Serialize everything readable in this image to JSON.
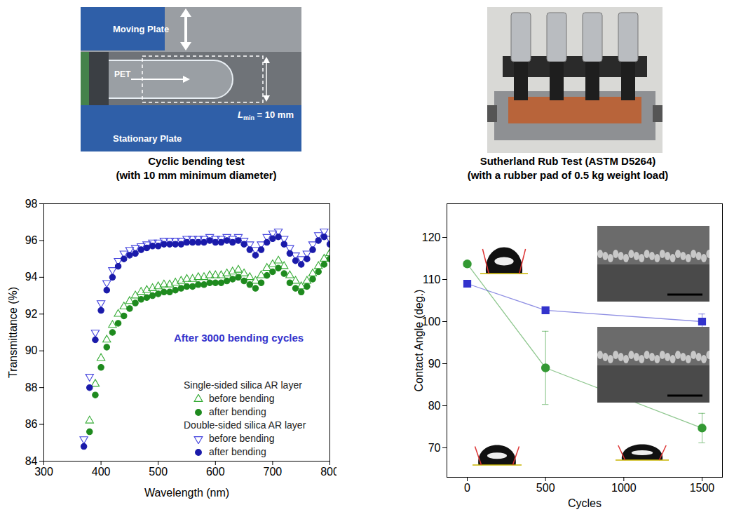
{
  "photos": [
    {
      "labels": [
        "Moving Plate",
        "PET",
        "Stationary Plate"
      ],
      "dimension": {
        "symbol": "L",
        "subscript": "min",
        "text": " = 10 mm"
      },
      "caption": [
        "Cyclic bending test",
        "(with 10 mm minimum diameter)"
      ]
    },
    {
      "caption": [
        "Sutherland Rub Test (ASTM D5264)",
        "(with a rubber pad of 0.5 kg weight load)"
      ]
    }
  ],
  "chart_data": [
    {
      "type": "scatter",
      "xlabel": "Wavelength (nm)",
      "ylabel": "Transmittance (%)",
      "xlim": [
        300,
        800
      ],
      "xticks": [
        300,
        400,
        500,
        600,
        700,
        800
      ],
      "ylim": [
        84,
        98
      ],
      "yticks": [
        84,
        86,
        88,
        90,
        92,
        94,
        96,
        98
      ],
      "legend": "lower right",
      "annotations": [
        {
          "text": "After 3000 bending cycles",
          "color": "#3333cc"
        }
      ],
      "x": [
        370,
        380,
        390,
        400,
        410,
        420,
        430,
        440,
        450,
        460,
        470,
        480,
        490,
        500,
        510,
        520,
        530,
        540,
        550,
        560,
        570,
        580,
        590,
        600,
        610,
        620,
        630,
        640,
        650,
        660,
        670,
        680,
        690,
        700,
        710,
        720,
        730,
        740,
        750,
        760,
        770,
        780,
        790,
        800
      ],
      "series": [
        {
          "group": "Single-sided silica AR layer",
          "name": "before bending",
          "color": "#33aa33",
          "marker": "triangle-open",
          "values": [
            null,
            86.2,
            88.2,
            89.6,
            90.6,
            91.4,
            92.0,
            92.4,
            92.7,
            93.0,
            93.2,
            93.3,
            93.4,
            93.5,
            93.6,
            93.6,
            93.7,
            93.8,
            93.9,
            93.9,
            94.0,
            94.0,
            94.1,
            94.1,
            94.1,
            94.2,
            94.3,
            94.4,
            94.2,
            94.0,
            93.8,
            94.1,
            94.5,
            94.7,
            94.9,
            94.6,
            94.1,
            93.8,
            93.5,
            93.8,
            94.2,
            94.6,
            95.0,
            95.3
          ]
        },
        {
          "group": "Single-sided silica AR layer",
          "name": "after bending",
          "color": "#1e8a1e",
          "marker": "circle",
          "values": [
            null,
            85.6,
            87.6,
            89.1,
            90.2,
            91.0,
            91.5,
            91.9,
            92.3,
            92.6,
            92.8,
            92.9,
            93.0,
            93.1,
            93.2,
            93.2,
            93.3,
            93.4,
            93.5,
            93.5,
            93.6,
            93.6,
            93.7,
            93.7,
            93.7,
            93.8,
            93.9,
            94.0,
            93.8,
            93.6,
            93.4,
            93.7,
            94.1,
            94.3,
            94.5,
            94.2,
            93.7,
            93.4,
            93.2,
            93.5,
            93.9,
            94.3,
            94.7,
            95.0
          ]
        },
        {
          "group": "Double-sided silica AR layer",
          "name": "before bending",
          "color": "#4444dd",
          "marker": "triangle-down-open",
          "values": [
            85.2,
            88.6,
            91.0,
            92.6,
            93.7,
            94.4,
            94.9,
            95.3,
            95.5,
            95.6,
            95.7,
            95.8,
            95.9,
            95.9,
            96.0,
            96.0,
            96.0,
            96.0,
            96.1,
            96.1,
            96.1,
            96.1,
            96.2,
            96.1,
            96.1,
            96.2,
            96.1,
            96.2,
            96.0,
            95.8,
            95.5,
            95.8,
            96.2,
            96.4,
            96.5,
            96.1,
            95.6,
            95.2,
            95.0,
            95.3,
            95.8,
            96.3,
            96.5,
            96.1
          ]
        },
        {
          "group": "Double-sided silica AR layer",
          "name": "after bending",
          "color": "#1a1aaa",
          "marker": "circle",
          "values": [
            84.8,
            88.0,
            90.6,
            92.2,
            93.3,
            94.0,
            94.6,
            95.0,
            95.2,
            95.3,
            95.5,
            95.6,
            95.7,
            95.7,
            95.8,
            95.8,
            95.8,
            95.8,
            95.9,
            95.9,
            95.9,
            95.9,
            96.0,
            95.9,
            95.9,
            96.0,
            95.9,
            96.0,
            95.8,
            95.5,
            95.2,
            95.5,
            95.9,
            96.1,
            96.2,
            95.8,
            95.3,
            94.9,
            94.7,
            95.0,
            95.5,
            96.0,
            96.2,
            95.8
          ]
        }
      ]
    },
    {
      "type": "line",
      "xlabel": "Cycles",
      "ylabel": "Contact Angle (deg.)",
      "xlim": [
        -130,
        1630
      ],
      "xticks": [
        0,
        500,
        1000,
        1500
      ],
      "ylim": [
        63,
        128
      ],
      "yticks": [
        70,
        80,
        90,
        100,
        110,
        120
      ],
      "x": [
        0,
        500,
        1500
      ],
      "series": [
        {
          "color": "#339933",
          "marker": "circle",
          "values": [
            113.7,
            89,
            74.7
          ],
          "errors": [
            0.6,
            8.7,
            3.5
          ]
        },
        {
          "color": "#3333cc",
          "marker": "square",
          "values": [
            109,
            102.7,
            100
          ],
          "errors": [
            0.6,
            0.6,
            1.8
          ]
        }
      ]
    }
  ]
}
